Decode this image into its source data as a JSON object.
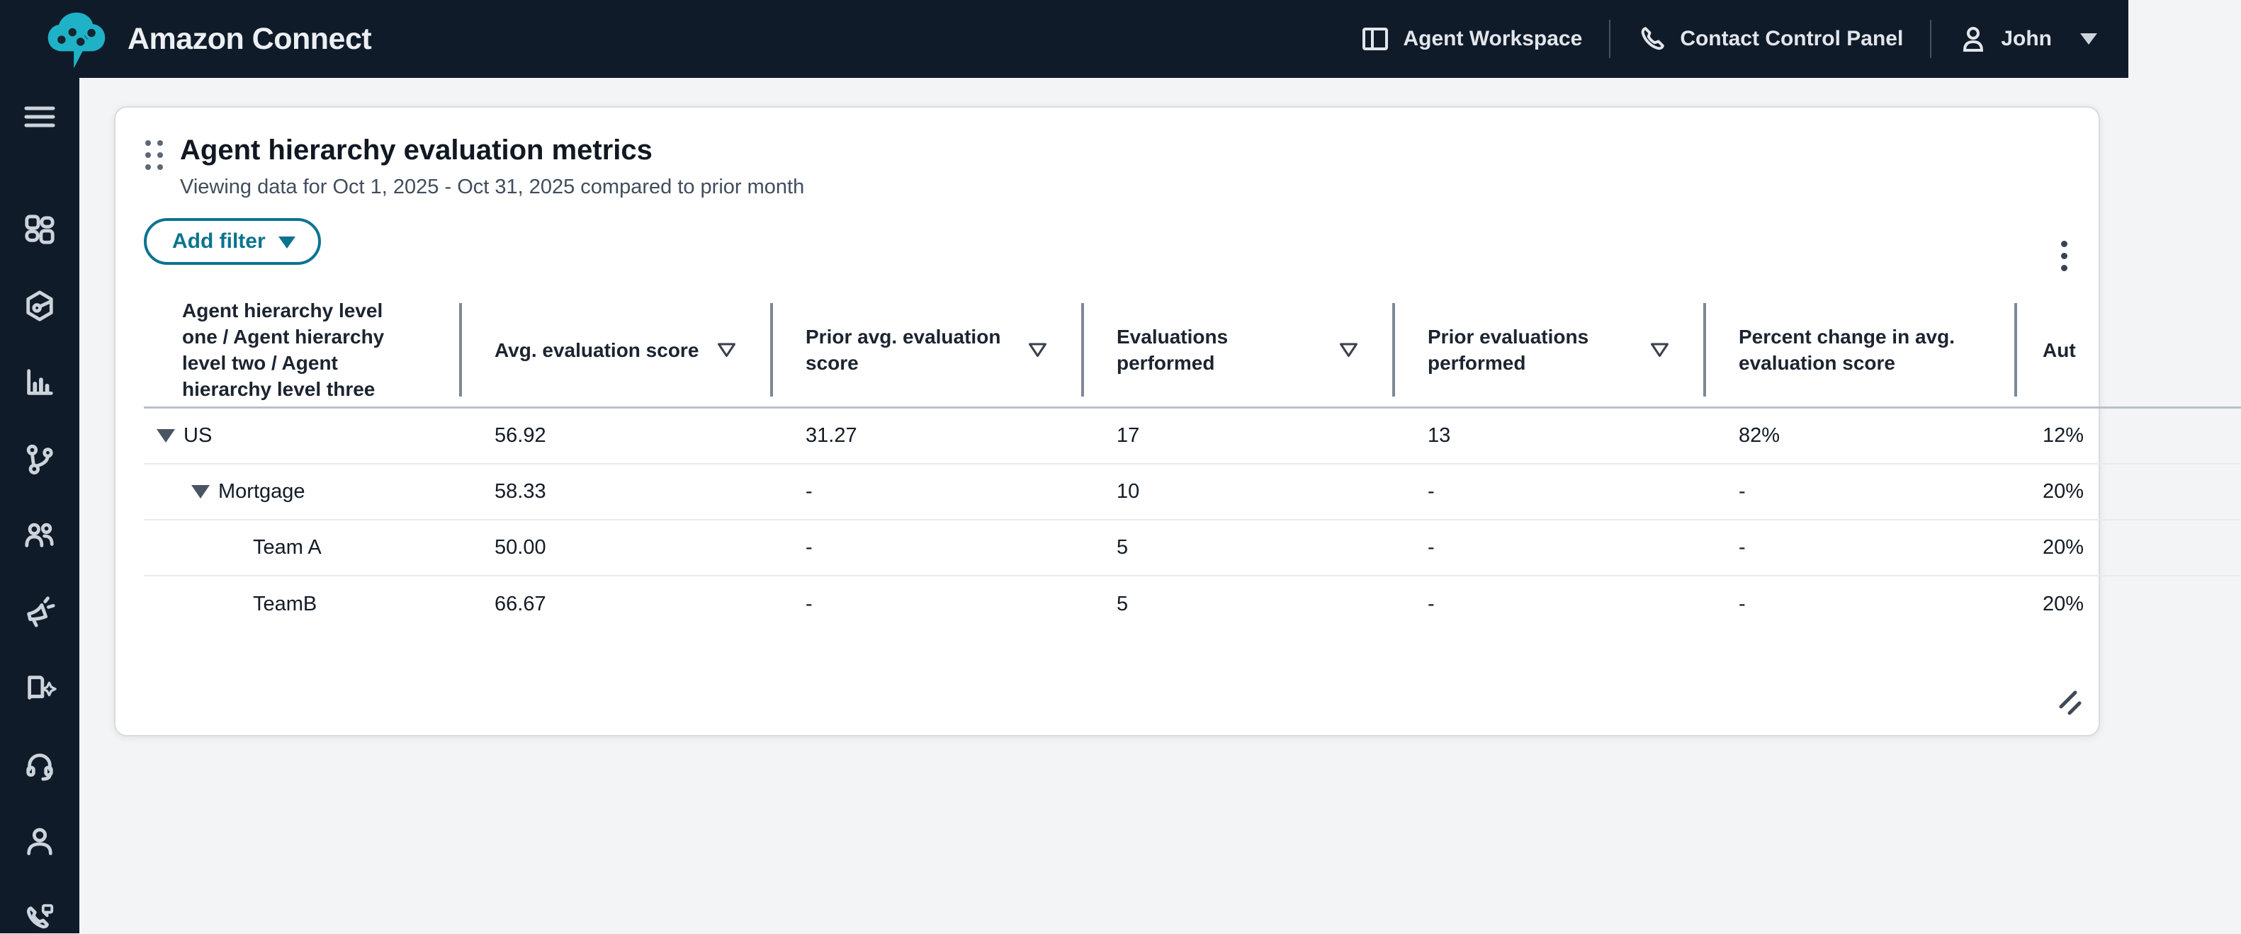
{
  "topbar": {
    "brand": "Amazon Connect",
    "nav": [
      {
        "label": "Agent Workspace",
        "icon": "workspace-icon"
      },
      {
        "label": "Contact Control Panel",
        "icon": "phone-icon"
      },
      {
        "label": "John",
        "icon": "user-icon",
        "has_caret": true
      }
    ]
  },
  "sidebar": {
    "menu_icon": "menu-icon",
    "items": [
      "dashboard-icon",
      "hexagon-gauge-icon",
      "analytics-icon",
      "flows-branch-icon",
      "users-icon",
      "campaigns-megaphone-icon",
      "knowledge-book-icon",
      "headset-icon",
      "customer-profile-icon",
      "phone-message-icon"
    ]
  },
  "widget": {
    "title": "Agent hierarchy evaluation metrics",
    "subtitle": "Viewing data for Oct 1, 2025 - Oct 31, 2025 compared to prior month",
    "add_filter_label": "Add filter",
    "table": {
      "columns": [
        {
          "label": "Agent hierarchy level one / Agent hierarchy level two / Agent hierarchy level three",
          "sortable": false
        },
        {
          "label": "Avg. evaluation score",
          "sortable": true
        },
        {
          "label": "Prior avg. evaluation score",
          "sortable": true
        },
        {
          "label": "Evaluations performed",
          "sortable": true
        },
        {
          "label": "Prior evaluations performed",
          "sortable": true
        },
        {
          "label": "Percent change in avg. evaluation score",
          "sortable": false
        },
        {
          "label": "Aut",
          "sortable": false,
          "clipped": true
        }
      ],
      "rows": [
        {
          "name": "US",
          "level": 1,
          "expandable": true,
          "values": [
            "56.92",
            "31.27",
            "17",
            "13",
            "82%",
            "12%"
          ]
        },
        {
          "name": "Mortgage",
          "level": 2,
          "expandable": true,
          "values": [
            "58.33",
            "-",
            "10",
            "-",
            "-",
            "20%"
          ]
        },
        {
          "name": "Team A",
          "level": 3,
          "expandable": false,
          "values": [
            "50.00",
            "-",
            "5",
            "-",
            "-",
            "20%"
          ]
        },
        {
          "name": "TeamB",
          "level": 3,
          "expandable": false,
          "values": [
            "66.67",
            "-",
            "5",
            "-",
            "-",
            "20%"
          ]
        }
      ]
    }
  },
  "colors": {
    "topbar_bg": "#101b2a",
    "accent": "#0b7390",
    "logo_teal": "#1fb2c6",
    "page_bg": "#f3f4f5"
  }
}
